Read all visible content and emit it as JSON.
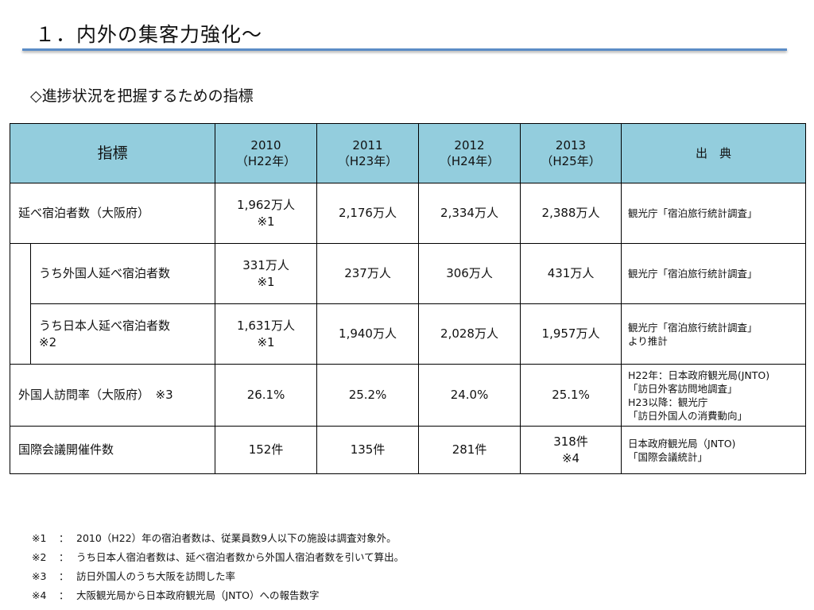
{
  "title": "１．内外の集客力強化～",
  "heading": "◇進捗状況を把握するための指標",
  "table": {
    "headers": {
      "indicator": "指標",
      "years": [
        {
          "year": "2010",
          "era": "（H22年）"
        },
        {
          "year": "2011",
          "era": "（H23年）"
        },
        {
          "year": "2012",
          "era": "（H24年）"
        },
        {
          "year": "2013",
          "era": "（H25年）"
        }
      ],
      "source": "出　典"
    },
    "rows": [
      {
        "label": "延べ宿泊者数（大阪府）",
        "values": [
          [
            "1,962万人",
            "※1"
          ],
          [
            "2,176万人"
          ],
          [
            "2,334万人"
          ],
          [
            "2,388万人"
          ]
        ],
        "source": [
          "観光庁「宿泊旅行統計調査」"
        ]
      },
      {
        "label": "うち外国人延べ宿泊者数",
        "values": [
          [
            "331万人",
            "※1"
          ],
          [
            "237万人"
          ],
          [
            "306万人"
          ],
          [
            "431万人"
          ]
        ],
        "source": [
          "観光庁「宿泊旅行統計調査」"
        ]
      },
      {
        "label": "うち日本人延べ宿泊者数",
        "label2": "※2",
        "values": [
          [
            "1,631万人",
            "※1"
          ],
          [
            "1,940万人"
          ],
          [
            "2,028万人"
          ],
          [
            "1,957万人"
          ]
        ],
        "source": [
          "観光庁「宿泊旅行統計調査」",
          "より推計"
        ]
      },
      {
        "label": "外国人訪問率（大阪府）　※3",
        "values": [
          [
            "26.1%"
          ],
          [
            "25.2%"
          ],
          [
            "24.0%"
          ],
          [
            "25.1%"
          ]
        ],
        "source": [
          "H22年：日本政府観光局(JNTO)",
          "「訪日外客訪問地調査」",
          "H23以降：観光庁",
          "「訪日外国人の消費動向」"
        ]
      },
      {
        "label": "国際会議開催件数",
        "values": [
          [
            "152件"
          ],
          [
            "135件"
          ],
          [
            "281件"
          ],
          [
            "318件",
            "※4"
          ]
        ],
        "source": [
          "日本政府観光局（JNTO)",
          "「国際会議統計」"
        ]
      }
    ]
  },
  "notes": [
    {
      "mark": "※1",
      "colon": "：",
      "text": "2010（H22）年の宿泊者数は、従業員数9人以下の施設は調査対象外。"
    },
    {
      "mark": "※2",
      "colon": "：",
      "text": "うち日本人宿泊者数は、延べ宿泊者数から外国人宿泊者数を引いて算出。"
    },
    {
      "mark": "※3",
      "colon": "：",
      "text": "訪日外国人のうち大阪を訪問した率"
    },
    {
      "mark": "※4",
      "colon": "：",
      "text": "大阪観光局から日本政府観光局（JNTO）への報告数字"
    }
  ],
  "colors": {
    "header_bg": "#93cddd",
    "title_rule": "#5b8cc7"
  }
}
